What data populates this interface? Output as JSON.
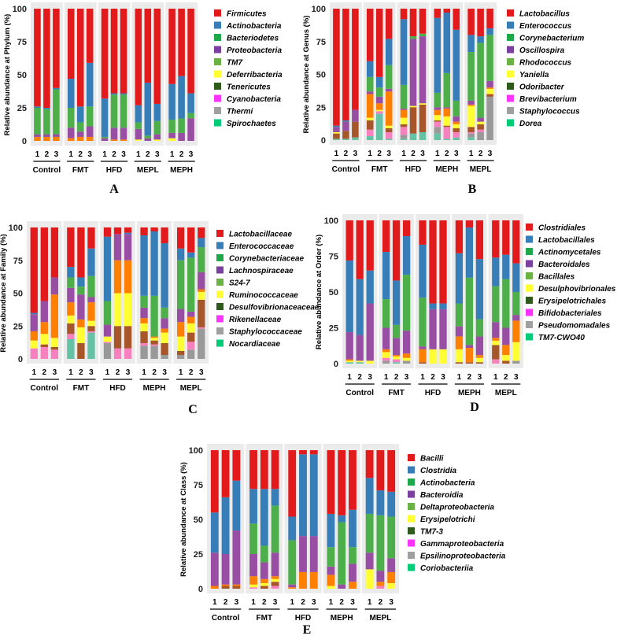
{
  "segment_colors": {
    "R": "#e31a1c",
    "B": "#377eb8",
    "G": "#4daf4a",
    "P": "#984ea3",
    "O": "#ff7f00",
    "Y": "#ffff33",
    "Br": "#a65628",
    "Pk": "#f781bf",
    "Gy": "#999999",
    "T": "#66c2a5"
  },
  "legend_colors": [
    "#e31a1c",
    "#377eb8",
    "#1fa84a",
    "#7b3fa0",
    "#6bb245",
    "#ffff33",
    "#2e5a1c",
    "#ff33ff",
    "#a0a0a0",
    "#00cc77"
  ],
  "chart_data": [
    {
      "type": "bar",
      "stacked": true,
      "panel_label": "A",
      "ylabel": "Relative abundance at Phylum (%)",
      "ylim": [
        0,
        100
      ],
      "yticks": [
        "0",
        "25",
        "50",
        "75",
        "100"
      ],
      "groups": [
        "Control",
        "FMT",
        "HFD",
        "MEPL",
        "MEPH"
      ],
      "samples": [
        "1",
        "2",
        "3"
      ],
      "legend": [
        "Firmicutes",
        "Actinobacteria",
        "Bacteriodetes",
        "Proteobacteria",
        "TM7",
        "Deferribacteria",
        "Tenericutes",
        "Cyanobacteria",
        "Thermi",
        "Spirochaetes"
      ],
      "bars": [
        "O3 P2 G20 B1 R74",
        "O3 P2 G19 B1 R75",
        "O3 P2 G34 B1 R60",
        "O2 P8 G15 B22 R53",
        "O3 P4 G7 B12 R74",
        "O3 P8 G15 B33 R41",
        "P2 G1 B29 R68",
        "O1 P9 G25 B1 R64",
        "O1 P9 G25 B1 R64",
        "Y1 P8 G5 B13 R73",
        "P2 G2 B40 R56",
        "Y1 P4 G10 B13 R72",
        "Y2 P4 G10 B27 R57",
        "P6 G11 B32 R51",
        "P17 G4 B15 R64"
      ]
    },
    {
      "type": "bar",
      "stacked": true,
      "panel_label": "B",
      "ylabel": "Relative abundance at Genus (%)",
      "ylim": [
        0,
        100
      ],
      "yticks": [
        "0",
        "25",
        "50",
        "75",
        "100"
      ],
      "groups": [
        "Control",
        "FMT",
        "HFD",
        "MEPH",
        "MEPL"
      ],
      "samples": [
        "1",
        "2",
        "3"
      ],
      "legend": [
        "Lactobacillus",
        "Enterococcus",
        "Corynebacterium",
        "Oscillospira",
        "Rhodococcus",
        "Yaniella",
        "Odoribacter",
        "Brevibacterium",
        "Staphylococcus",
        "Dorea"
      ],
      "bars": [
        "T1 Br4 Y1 P4 B1 R89",
        "T1 Br6 P7 B1 R85",
        "T2 Br12 P9 R77",
        "T3 Pk5 Br7 Y2 O18 P2 G11 B12 R40",
        "T20 Pk2 Y1 O5 P5 G7 B8 R52",
        "T1 Pk5 Br3 Y2 O26 P2 G18 B20 R23",
        "T1 Gy3 Pk6 Br2 Y5 O6 P1 G18 B50 R8",
        "T5 Br20 Y1 P51 G2 R21",
        "T6 Br21 Y1 P51 G2 R19",
        "T5 Gy5 Pk4 Br1 Y4 O4 P2 G11 B57 R7",
        "T1 Pk9 Br1 Y7 O6 P1 G26 B46 R3",
        "T2 Pk4 Br3 Y3 O2 P4 G12 B54 R16",
        "T2 Gy3 Pk1 Br4 Y16 O1 P3 G37 B13 R20",
        "Gy6 Pk2 Br4 Y2 P3 G57 B5 R21",
        "Gy33 Br2 Y4 O1 P5 G35 B5 R15"
      ]
    },
    {
      "type": "bar",
      "stacked": true,
      "panel_label": "C",
      "ylabel": "Relative abundance at Family (%)",
      "ylim": [
        0,
        100
      ],
      "yticks": [
        "0",
        "25",
        "50",
        "75",
        "100"
      ],
      "groups": [
        "Control",
        "FMT",
        "HFD",
        "MEPH",
        "MEPL"
      ],
      "samples": [
        "1",
        "2",
        "3"
      ],
      "legend": [
        "Lactobacillaceae",
        "Enterococcaceae",
        "Corynebacteriaceae",
        "Lachnospiraceae",
        "S24-7",
        "Ruminococcaceae",
        "Desulfovibrionaceaceae",
        "Rikenellaceae",
        "Staphylococcaceae",
        "Nocardiaceae"
      ],
      "bars": [
        "Pk8 Y6 O7 P13 B1 R65",
        "Pk9 Br2 Y8 O9 P16 R56",
        "Pk7 Br2 Y7 O33 P13 R38",
        "T15 Pk4 Br8 Y6 O10 P11 G8 B8 R30",
        "Br12 Y12 O6 P19 G6 B7 R38",
        "T20 Pk1 Br4 Y4 O14 P4 G16 B21 R16",
        "Gy12 Pk1 Y4 P9 G18 B49 R7",
        "Pk8 Br17 Y25 O25 P20 R5",
        "Pk8 Br17 Y25 O25 P20 B1 R4",
        "Gy10 Pk2 Br9 Y6 O4 P8 G9 B46 R6",
        "Gy10 Pk1 Br3 Y2 O1 G31 B49 R3",
        "Gy3 Br9 Y8 O3 P8 G8 B49 R12",
        "Gy3 Br3 Y11 O11 P10 G37 B9 R16",
        "Gy7 Pk6 Br7 Y7 O5 P4 G41 B4 R19",
        "Gy23 Pk1 Br21 Y6 O2 P13 G19 B7 R8"
      ]
    },
    {
      "type": "bar",
      "stacked": true,
      "panel_label": "D",
      "ylabel": "Relative abundance at Order (%)",
      "ylim": [
        0,
        100
      ],
      "yticks": [
        "0",
        "25",
        "50",
        "75",
        "100"
      ],
      "groups": [
        "Control",
        "FMT",
        "HFD",
        "MEPH",
        "MEPL"
      ],
      "samples": [
        "1",
        "2",
        "3"
      ],
      "legend": [
        "Clostridiales",
        "Lactobacillales",
        "Actinomycetales",
        "Bacteroidales",
        "Bacillales",
        "Desulphovibrionales",
        "Erysipelotrichales",
        "Bifidobacteriales",
        "Pseudomomadales",
        "TM7-CWO40"
      ],
      "bars": [
        "T1 Y1 O1 P19 B50 R28",
        "T1 Y1 P18 B39 R41",
        "Y2 P40 B23 R35",
        "Gy2 Pk2 Y4 O2 P15 G20 B33 R22",
        "T1 Pk2 Y2 O1 P12 G9 B31 R42",
        "Gy2 Y2 O3 P16 G39 B27 R11",
        "Br1 O9 P2 G34 B37 R17",
        "Y10 P28 B4 R58",
        "Y10 P28 B4 R58",
        "Br1 Y9 O9 P7 G16 B35 R23",
        "Br1 O10 P2 G47 B35 R5",
        "Br1 Y3 O2 P13 G12 B42 R27",
        "Pk3 Br10 Y3 O2 P11 G25 B20 R26",
        "Br2 Y4 O7 P12 G34 B17 R24",
        "Gy2 Y13 O15 P4 G16 B20 R30"
      ]
    },
    {
      "type": "bar",
      "stacked": true,
      "panel_label": "E",
      "ylabel": "Relative abundance at Class (%)",
      "ylim": [
        0,
        100
      ],
      "yticks": [
        "0",
        "25",
        "50",
        "75",
        "100"
      ],
      "groups": [
        "Control",
        "FMT",
        "HFD",
        "MEPH",
        "MEPL"
      ],
      "samples": [
        "1",
        "2",
        "3"
      ],
      "legend": [
        "Bacilli",
        "Clostridia",
        "Actinobacteria",
        "Bacteroidia",
        "Deltaproteobacteria",
        "Erysipelotrichi",
        "TM7-3",
        "Gammaproteobacteria",
        "Epsilinoproteobacteria",
        "Coriobacteriia"
      ],
      "bars": [
        "O2 P24 B29 R45",
        "Br2 O1 P22 B41 R34",
        "Br2 O1 P39 B36 R22",
        "Pk1 Y2 O6 P16 G22 B25 R28",
        "Br2 Y2 O3 P12 G12 B41 R28",
        "Pk2 Br3 Y2 O2 P17 G34 B12 R28",
        "O1 P2 G32 B17 R48",
        "O12 P26 B59 R3",
        "O12 P26 B59 R3",
        "Y2 O8 P6 G14 B24 R46",
        "P3 G45 B5 R47",
        "O5 P13 G12 B27 R43",
        "Y14 P12 G28 B26 R20",
        "Pk2 O3 P8 G40 B18 R29",
        "Y4 O8 P10 G30 B18 R30"
      ]
    }
  ]
}
